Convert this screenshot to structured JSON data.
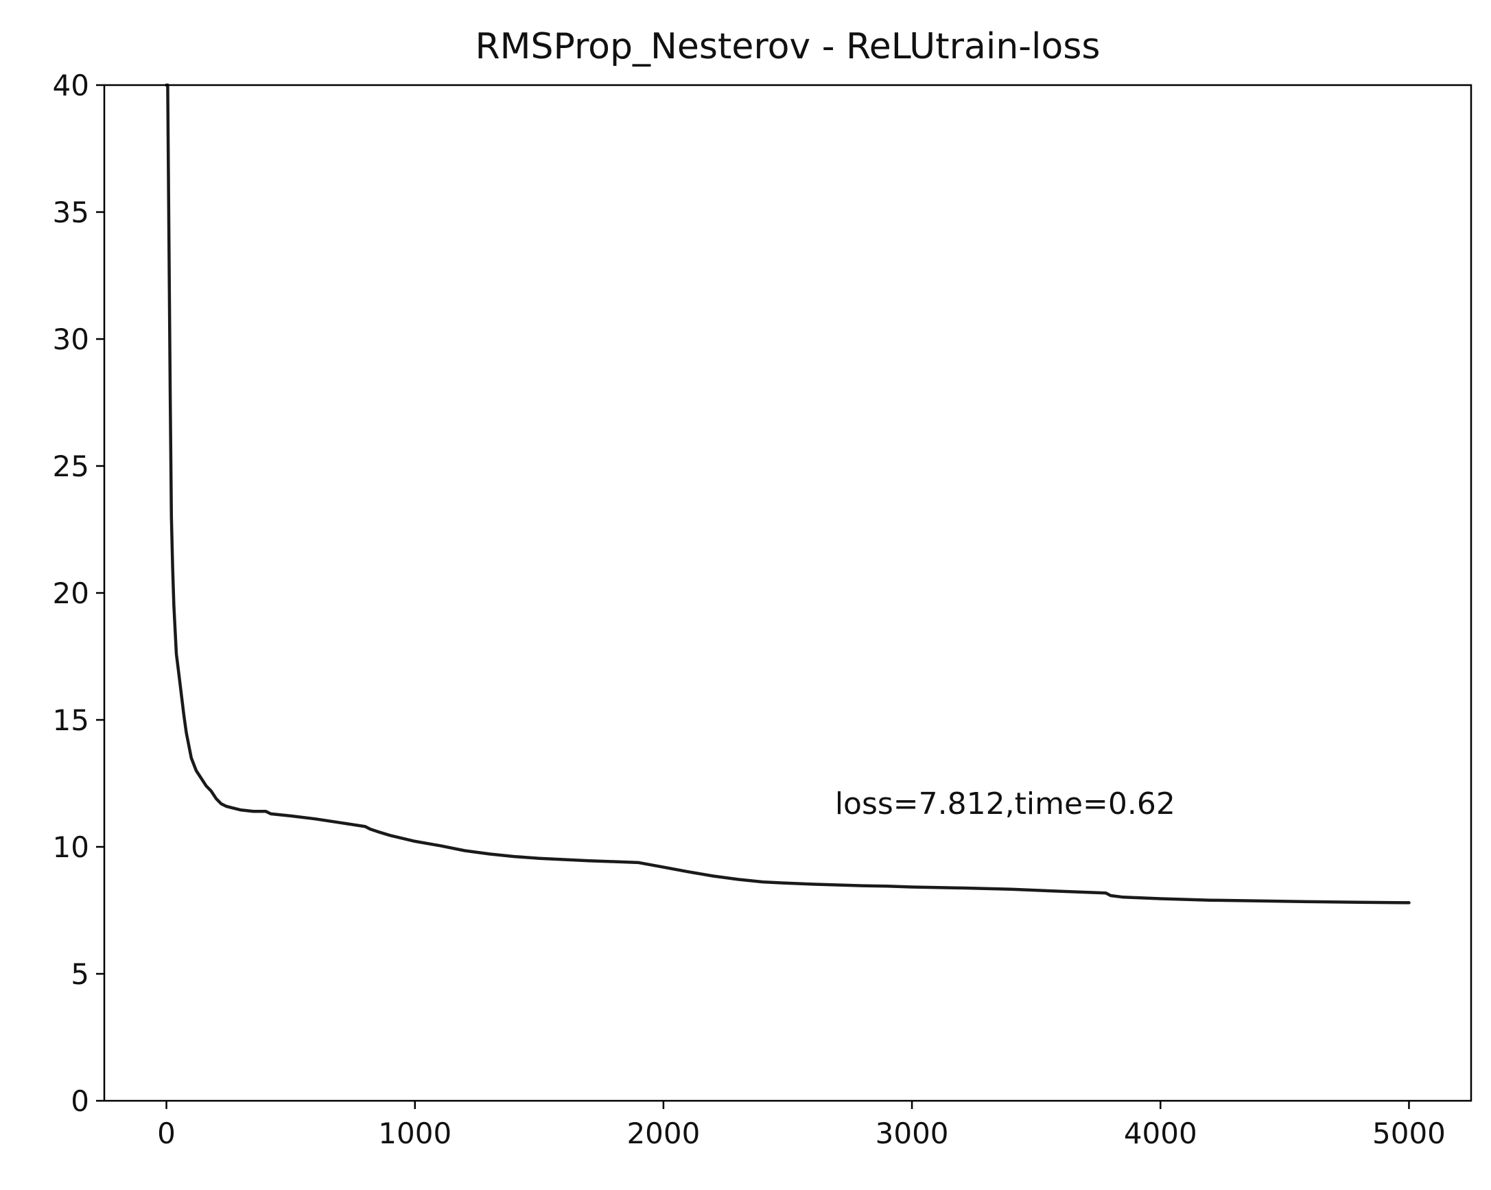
{
  "chart_data": {
    "type": "line",
    "title": "RMSProp_Nesterov - ReLUtrain-loss",
    "xlabel": "",
    "ylabel": "",
    "xlim": [
      -250,
      5250
    ],
    "ylim": [
      0,
      40
    ],
    "x_ticks": [
      0,
      1000,
      2000,
      3000,
      4000,
      5000
    ],
    "y_ticks": [
      0,
      5,
      10,
      15,
      20,
      25,
      30,
      35,
      40
    ],
    "grid": false,
    "legend": "none",
    "line_color": "#1a1a1a",
    "annotation": {
      "text": "loss=7.812,time=0.62",
      "x": 2690,
      "y": 11.7
    },
    "series": [
      {
        "x": [
          0,
          5,
          10,
          15,
          20,
          25,
          30,
          40,
          50,
          60,
          70,
          80,
          100,
          120,
          140,
          160,
          180,
          200,
          220,
          240,
          260,
          300,
          350,
          400,
          420,
          450,
          500,
          600,
          700,
          800,
          820,
          850,
          900,
          1000,
          1100,
          1200,
          1300,
          1400,
          1500,
          1600,
          1700,
          1800,
          1900,
          2000,
          2100,
          2200,
          2300,
          2400,
          2500,
          2600,
          2700,
          2800,
          2900,
          3000,
          3200,
          3400,
          3600,
          3780,
          3800,
          3850,
          3900,
          4000,
          4200,
          4400,
          4600,
          4800,
          5000
        ],
        "y": [
          40,
          40,
          34,
          28,
          23,
          21,
          19.5,
          17.6,
          16.8,
          16.0,
          15.2,
          14.5,
          13.5,
          13.0,
          12.7,
          12.4,
          12.2,
          11.9,
          11.7,
          11.6,
          11.55,
          11.45,
          11.4,
          11.4,
          11.3,
          11.27,
          11.22,
          11.1,
          10.95,
          10.8,
          10.7,
          10.6,
          10.45,
          10.22,
          10.05,
          9.85,
          9.72,
          9.62,
          9.55,
          9.5,
          9.45,
          9.42,
          9.38,
          9.2,
          9.02,
          8.85,
          8.72,
          8.62,
          8.57,
          8.53,
          8.5,
          8.47,
          8.45,
          8.42,
          8.38,
          8.33,
          8.25,
          8.18,
          8.08,
          8.02,
          8.0,
          7.96,
          7.9,
          7.87,
          7.84,
          7.82,
          7.8
        ]
      }
    ]
  }
}
